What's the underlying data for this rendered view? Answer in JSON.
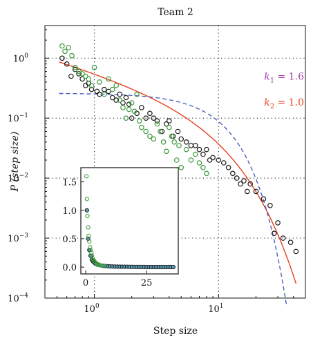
{
  "chart_data": {
    "type": "scatter",
    "title": "Team 2",
    "xlabel": "Step size",
    "ylabel": "P (step size)",
    "xscale": "log",
    "yscale": "log",
    "xlim": [
      0.4,
      50
    ],
    "ylim": [
      0.0001,
      3.5
    ],
    "x_ticks": [
      {
        "value": 1,
        "base": "10",
        "exp": "0"
      },
      {
        "value": 10,
        "base": "10",
        "exp": "1"
      }
    ],
    "y_ticks": [
      {
        "value": 1,
        "base": "10",
        "exp": "0"
      },
      {
        "value": 0.1,
        "base": "10",
        "exp": "−1"
      },
      {
        "value": 0.01,
        "base": "10",
        "exp": "−2"
      },
      {
        "value": 0.001,
        "base": "10",
        "exp": "−3"
      },
      {
        "value": 0.0001,
        "base": "10",
        "exp": "−4"
      }
    ],
    "grid": "dotted",
    "annotations": [
      {
        "text_sym": "k",
        "sub": "1",
        "rest": " = 1.6",
        "color": "#a040a8"
      },
      {
        "text_sym": "k",
        "sub": "2",
        "rest": " = 1.0",
        "color": "#e8401c"
      }
    ],
    "colors": {
      "black_series": "#1a1a1a",
      "green_series": "#3a9a3a",
      "red_fit": "#e8401c",
      "blue_fit": "#4a5fc0"
    },
    "series": [
      {
        "marker": "circle-open",
        "color": "#1a1a1a",
        "x": [
          0.55,
          0.6,
          0.65,
          0.7,
          0.75,
          0.8,
          0.85,
          0.9,
          0.95,
          1.05,
          1.1,
          1.2,
          1.3,
          1.4,
          1.5,
          1.6,
          1.7,
          1.8,
          1.9,
          2.0,
          2.2,
          2.4,
          2.6,
          2.8,
          3.0,
          3.2,
          3.5,
          3.8,
          4.0,
          4.3,
          4.7,
          5.0,
          5.5,
          6.0,
          6.5,
          7.0,
          7.5,
          8.0,
          8.5,
          9.0,
          10.0,
          11.0,
          12.0,
          13.0,
          14.0,
          15.0,
          16.0,
          17.0,
          18.0,
          20.0,
          23.0,
          26.0,
          28.0,
          30.0,
          33.0,
          38.0,
          42.0
        ],
        "y": [
          1.0,
          0.8,
          0.5,
          0.65,
          0.55,
          0.45,
          0.35,
          0.38,
          0.3,
          0.28,
          0.25,
          0.3,
          0.28,
          0.22,
          0.2,
          0.25,
          0.18,
          0.22,
          0.17,
          0.1,
          0.12,
          0.15,
          0.1,
          0.12,
          0.1,
          0.09,
          0.06,
          0.08,
          0.09,
          0.05,
          0.06,
          0.045,
          0.04,
          0.035,
          0.035,
          0.03,
          0.025,
          0.03,
          0.02,
          0.022,
          0.02,
          0.018,
          0.015,
          0.012,
          0.01,
          0.008,
          0.009,
          0.006,
          0.008,
          0.006,
          0.0045,
          0.0035,
          0.0012,
          0.0018,
          0.001,
          0.00085,
          0.0006
        ]
      },
      {
        "marker": "circle-open",
        "color": "#3a9a3a",
        "x": [
          0.55,
          0.58,
          0.62,
          0.66,
          0.7,
          0.75,
          0.8,
          0.85,
          0.9,
          0.95,
          1.0,
          1.1,
          1.2,
          1.3,
          1.4,
          1.5,
          1.6,
          1.7,
          1.8,
          1.9,
          2.0,
          2.1,
          2.2,
          2.3,
          2.4,
          2.6,
          2.8,
          3.0,
          3.2,
          3.4,
          3.6,
          3.8,
          4.0,
          4.2,
          4.4,
          4.6,
          4.8,
          5.0,
          5.5,
          6.0,
          6.5,
          7.0,
          7.5,
          8.0
        ],
        "y": [
          1.6,
          1.3,
          1.5,
          1.1,
          0.7,
          0.6,
          0.55,
          0.5,
          0.45,
          0.35,
          0.7,
          0.4,
          0.25,
          0.45,
          0.3,
          0.35,
          0.2,
          0.15,
          0.1,
          0.14,
          0.18,
          0.13,
          0.25,
          0.09,
          0.07,
          0.06,
          0.05,
          0.045,
          0.08,
          0.06,
          0.04,
          0.028,
          0.07,
          0.05,
          0.04,
          0.02,
          0.035,
          0.015,
          0.03,
          0.02,
          0.025,
          0.018,
          0.015,
          0.012
        ]
      }
    ],
    "fits": [
      {
        "name_sub": "2",
        "color": "#e8401c",
        "style": "solid",
        "comment": "red fit"
      },
      {
        "name_sub": "1",
        "color": "#4a5fc0",
        "style": "dashed",
        "comment": "blue fit"
      }
    ],
    "inset": {
      "type": "scatter",
      "xlim": [
        -2,
        38
      ],
      "ylim": [
        -0.12,
        1.75
      ],
      "x_tick_labels": [
        "0",
        "25"
      ],
      "x_ticks": [
        0,
        25
      ],
      "y_tick_labels": [
        "0.0",
        "0.5",
        "1.0",
        "1.5"
      ],
      "y_ticks": [
        0.0,
        0.5,
        1.0,
        1.5
      ],
      "series": [
        {
          "color": "#1a1a1a",
          "x": [
            0.5,
            1,
            1.5,
            2,
            2.5,
            3,
            3.5,
            4,
            5,
            6,
            7,
            8,
            9,
            10,
            11,
            12,
            13,
            14,
            15,
            16,
            17,
            18,
            19,
            20,
            21,
            22,
            23,
            24,
            25,
            26,
            27,
            28,
            29,
            30,
            31,
            32,
            33,
            34,
            35,
            36
          ],
          "y": [
            1.0,
            0.5,
            0.3,
            0.2,
            0.13,
            0.1,
            0.08,
            0.06,
            0.04,
            0.03,
            0.025,
            0.02,
            0.016,
            0.013,
            0.011,
            0.01,
            0.009,
            0.008,
            0.007,
            0.006,
            0.006,
            0.005,
            0.005,
            0.004,
            0.004,
            0.003,
            0.003,
            0.003,
            0.002,
            0.002,
            0.002,
            0.002,
            0.001,
            0.001,
            0.001,
            0.001,
            0.001,
            0.001,
            0.001,
            0.001
          ]
        },
        {
          "color": "#3a9a3a",
          "x": [
            0.3,
            0.5,
            0.7,
            1,
            1.2,
            1.5,
            1.8,
            2,
            2.3,
            2.6,
            3,
            3.3,
            3.6,
            4,
            4.5,
            5,
            5.5,
            6,
            7,
            8
          ],
          "y": [
            1.6,
            1.2,
            0.9,
            0.7,
            0.55,
            0.45,
            0.35,
            0.3,
            0.25,
            0.2,
            0.15,
            0.12,
            0.1,
            0.08,
            0.06,
            0.05,
            0.04,
            0.03,
            0.02,
            0.015
          ]
        }
      ]
    }
  }
}
